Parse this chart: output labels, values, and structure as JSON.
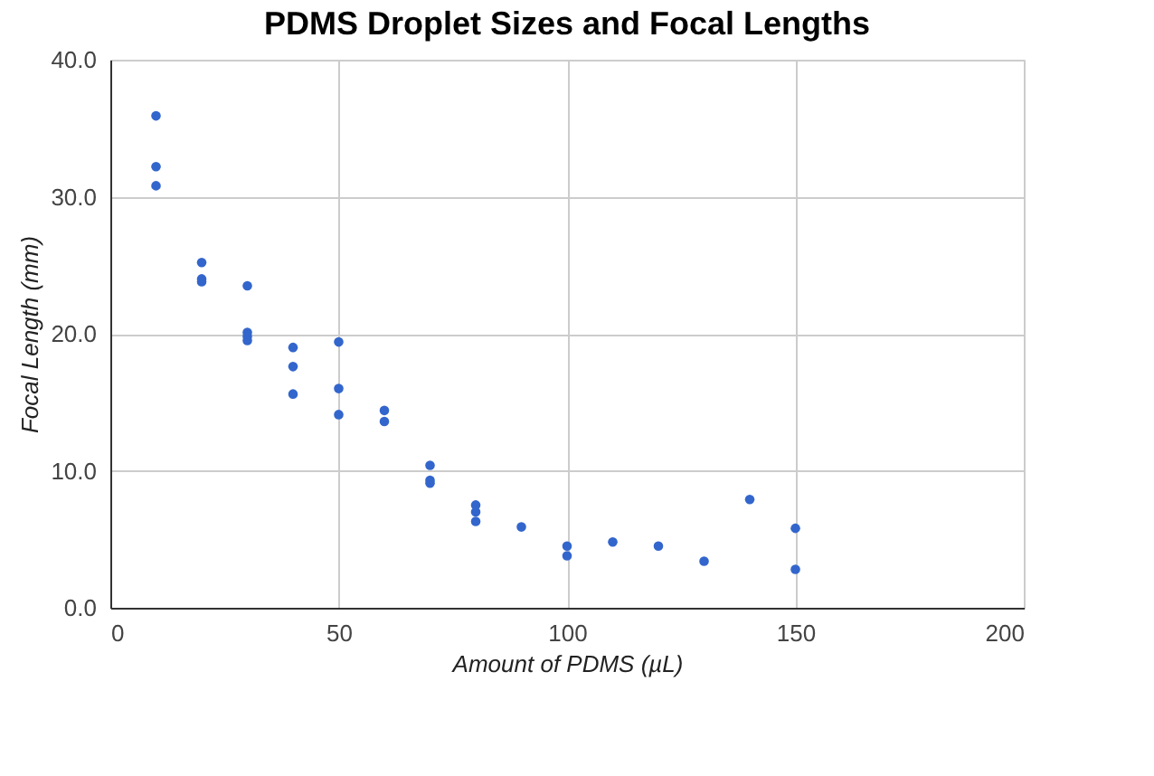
{
  "chart_data": {
    "type": "scatter",
    "title": "PDMS Droplet Sizes and Focal Lengths",
    "xlabel": "Amount of PDMS (µL)",
    "ylabel": "Focal Length (mm)",
    "x": [
      10,
      10,
      10,
      20,
      20,
      20,
      30,
      30,
      30,
      30,
      40,
      40,
      40,
      50,
      50,
      50,
      60,
      60,
      70,
      70,
      70,
      80,
      80,
      80,
      90,
      100,
      100,
      110,
      120,
      130,
      140,
      150,
      150
    ],
    "series": [
      {
        "color": "#3366cc",
        "values": [
          35.9,
          32.2,
          30.8,
          25.2,
          24.0,
          23.8,
          23.5,
          20.1,
          19.8,
          19.5,
          19.0,
          17.6,
          15.6,
          19.4,
          16.0,
          14.1,
          14.4,
          13.6,
          10.4,
          9.3,
          9.1,
          7.5,
          7.0,
          6.3,
          5.9,
          4.5,
          3.8,
          4.8,
          4.5,
          3.4,
          7.9,
          5.8,
          2.8
        ]
      }
    ],
    "xlim": [
      0,
      200
    ],
    "xticks": [
      0,
      50,
      100,
      150,
      200
    ],
    "ylim": [
      0,
      40
    ],
    "yticks": [
      {
        "value": 0,
        "label": "0.0"
      },
      {
        "value": 10,
        "label": "10.0"
      },
      {
        "value": 20,
        "label": "20.0"
      },
      {
        "value": 30,
        "label": "30.0"
      },
      {
        "value": 40,
        "label": "40.0"
      }
    ],
    "grid": true,
    "marker": "circle",
    "legend": false
  }
}
